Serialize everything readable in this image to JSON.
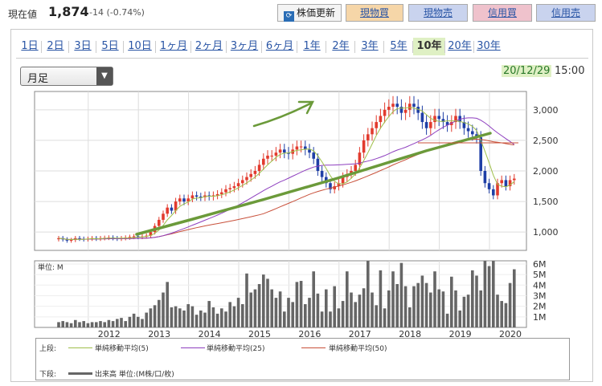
{
  "header": {
    "price_label": "現在値",
    "price_value": "1,874",
    "price_change": "-14 (-0.74%)",
    "update_button": "株価更新",
    "genbutsu_buy": "現物買",
    "genbutsu_sell": "現物売",
    "shinyo_buy": "信用買",
    "shinyo_sell": "信用売"
  },
  "tabs": [
    "1日",
    "2日",
    "3日",
    "5日",
    "10日",
    "1ヶ月",
    "2ヶ月",
    "3ヶ月",
    "6ヶ月",
    "1年",
    "2年",
    "3年",
    "5年",
    "10年",
    "20年",
    "30年"
  ],
  "active_tab": "10年",
  "period_select": "月足",
  "timestamp": {
    "date": "20/12/29",
    "time": "15:00"
  },
  "colors": {
    "candle_up": "#e23b2e",
    "candle_down": "#1f3fa6",
    "ma5": "#9fbf4a",
    "ma25": "#8e3fbf",
    "ma50": "#c8503a",
    "trendline": "#6b9a3a",
    "volume": "#666666"
  },
  "chart_data": {
    "type": "candlestick",
    "price_axis": {
      "ticks": [
        "1,000",
        "1,500",
        "2,000",
        "2,500",
        "3,000"
      ],
      "range": [
        700,
        3300
      ]
    },
    "volume_axis": {
      "unit_label": "単位: M",
      "ticks": [
        "1M",
        "2M",
        "3M",
        "4M",
        "5M",
        "6M"
      ],
      "range": [
        0,
        6.3
      ]
    },
    "x_labels": [
      "2012",
      "2013",
      "2014",
      "2015",
      "2016",
      "2017",
      "2018",
      "2019",
      "2020"
    ],
    "closes": [
      900,
      880,
      860,
      870,
      900,
      890,
      880,
      890,
      900,
      890,
      900,
      905,
      910,
      900,
      890,
      900,
      910,
      920,
      930,
      920,
      930,
      940,
      1000,
      1100,
      1200,
      1300,
      1400,
      1350,
      1500,
      1550,
      1500,
      1550,
      1600,
      1580,
      1570,
      1600,
      1580,
      1600,
      1620,
      1650,
      1700,
      1720,
      1750,
      1800,
      1850,
      1900,
      1950,
      2000,
      2100,
      2200,
      2250,
      2250,
      2300,
      2350,
      2300,
      2280,
      2350,
      2400,
      2400,
      2350,
      2300,
      2200,
      2000,
      1900,
      1800,
      1700,
      1750,
      1800,
      1900,
      1950,
      2000,
      2100,
      2300,
      2500,
      2600,
      2700,
      2800,
      2900,
      3000,
      3050,
      3100,
      3050,
      2950,
      3000,
      3100,
      3050,
      2950,
      2800,
      2700,
      2800,
      2900,
      2850,
      2800,
      2750,
      2800,
      2900,
      2800,
      2700,
      2650,
      2600,
      2550,
      2000,
      1800,
      1700,
      1600,
      1800,
      1850,
      1750,
      1850,
      1874
    ],
    "volumes": [
      0.5,
      0.6,
      0.5,
      0.4,
      0.7,
      0.5,
      0.6,
      0.4,
      0.5,
      0.5,
      0.6,
      0.5,
      0.7,
      0.6,
      0.8,
      0.9,
      0.6,
      1.0,
      1.3,
      1.0,
      0.8,
      1.4,
      1.8,
      2.1,
      2.6,
      3.3,
      4.3,
      1.9,
      2.0,
      1.8,
      1.6,
      2.2,
      2.0,
      1.2,
      1.6,
      1.4,
      2.5,
      1.9,
      1.3,
      1.8,
      1.5,
      2.4,
      2.0,
      2.8,
      2.2,
      5.1,
      3.3,
      3.6,
      4.1,
      5.0,
      4.6,
      3.6,
      2.8,
      3.4,
      1.5,
      2.8,
      2.4,
      4.3,
      4.4,
      2.2,
      2.8,
      5.3,
      3.2,
      1.5,
      3.6,
      1.5,
      3.9,
      1.8,
      2.5,
      5.3,
      3.3,
      2.4,
      3.1,
      3.7,
      6.3,
      3.3,
      2.1,
      5.4,
      1.8,
      3.5,
      5.3,
      4.1,
      6.1,
      3.9,
      1.9,
      3.9,
      4.2,
      4.9,
      4.2,
      3.3,
      5.3,
      3.6,
      3.4,
      1.3,
      4.8,
      3.5,
      1.6,
      2.9,
      3.1,
      5.4,
      4.9,
      3.5,
      6.3,
      5.8,
      6.3,
      3.1,
      2.5,
      2.3,
      4.2,
      5.5
    ],
    "series": [
      {
        "name": "単純移動平均(5)"
      },
      {
        "name": "単純移動平均(25)"
      },
      {
        "name": "単純移動平均(50)"
      }
    ],
    "volume_series": {
      "name": "出来高 単位:(M株/口/枚)"
    }
  },
  "legend": {
    "upper_label": "上段:",
    "lower_label": "下段:",
    "ma5": "単純移動平均(5)",
    "ma25": "単純移動平均(25)",
    "ma50": "単純移動平均(50)",
    "volume": "出来高 単位:(M株/口/枚)"
  }
}
